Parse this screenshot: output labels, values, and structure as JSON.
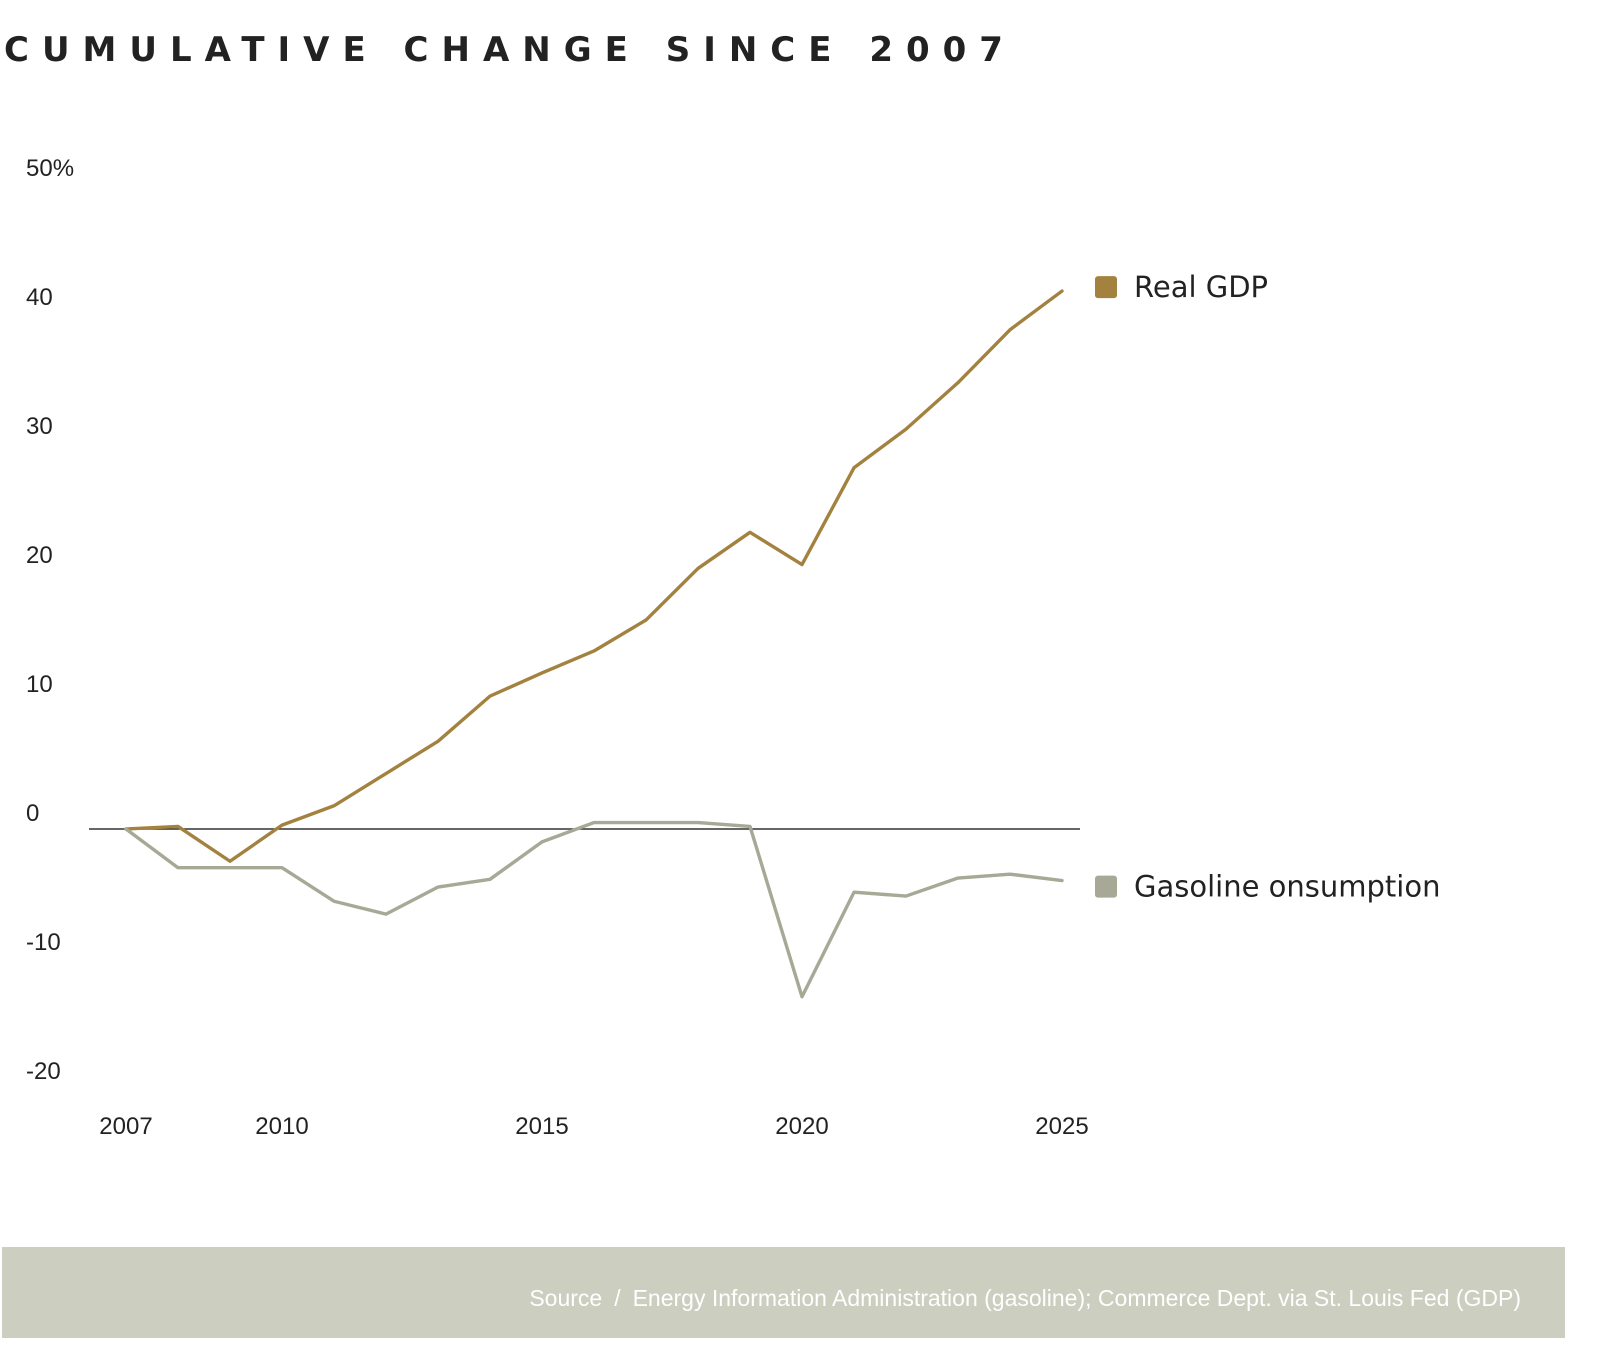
{
  "title": "CUMULATIVE CHANGE SINCE 2007",
  "chart_data": {
    "type": "line",
    "title": "CUMULATIVE CHANGE SINCE 2007",
    "xlabel": "",
    "ylabel": "",
    "xlim": [
      2007,
      2025
    ],
    "ylim": [
      -20,
      50
    ],
    "x_ticks": [
      2007,
      2010,
      2015,
      2020,
      2025
    ],
    "y_ticks": [
      {
        "value": 50,
        "label": "50%"
      },
      {
        "value": 40,
        "label": "40"
      },
      {
        "value": 30,
        "label": "30"
      },
      {
        "value": 20,
        "label": "20"
      },
      {
        "value": 10,
        "label": "10"
      },
      {
        "value": 0,
        "label": "0"
      },
      {
        "value": -10,
        "label": "-10"
      },
      {
        "value": -20,
        "label": "-20"
      }
    ],
    "grid": false,
    "zero_line": true,
    "legend_placement": "right, beside line ends",
    "series": [
      {
        "name": "Real GDP",
        "color": "#a3823f",
        "x": [
          2007,
          2008,
          2009,
          2010,
          2011,
          2012,
          2013,
          2014,
          2015,
          2016,
          2017,
          2018,
          2019,
          2020,
          2021,
          2022,
          2023,
          2024,
          2025
        ],
        "values": [
          0,
          0.2,
          -2.5,
          0.3,
          1.8,
          4.3,
          6.8,
          10.3,
          12.1,
          13.8,
          16.2,
          20.2,
          23.0,
          20.5,
          28.0,
          31.0,
          34.6,
          38.7,
          41.7
        ]
      },
      {
        "name": "Gasoline onsumption",
        "color": "#a7a896",
        "x": [
          2007,
          2008,
          2009,
          2010,
          2011,
          2012,
          2013,
          2014,
          2015,
          2016,
          2017,
          2018,
          2019,
          2020,
          2021,
          2022,
          2023,
          2024,
          2025
        ],
        "values": [
          0,
          -3,
          -3,
          -3,
          -5.6,
          -6.6,
          -4.5,
          -3.9,
          -1.0,
          0.5,
          0.5,
          0.5,
          0.2,
          -13.0,
          -4.9,
          -5.2,
          -3.8,
          -3.5,
          -4.0
        ]
      }
    ]
  },
  "source": {
    "label": "Source",
    "separator": "/",
    "text": "Energy Information Administration (gasoline); Commerce Dept. via St. Louis Fed (GDP)"
  },
  "colors": {
    "gdp": "#a3823f",
    "gasoline": "#a7a896",
    "footer_bg": "#cccec0",
    "axis": "#333333"
  }
}
